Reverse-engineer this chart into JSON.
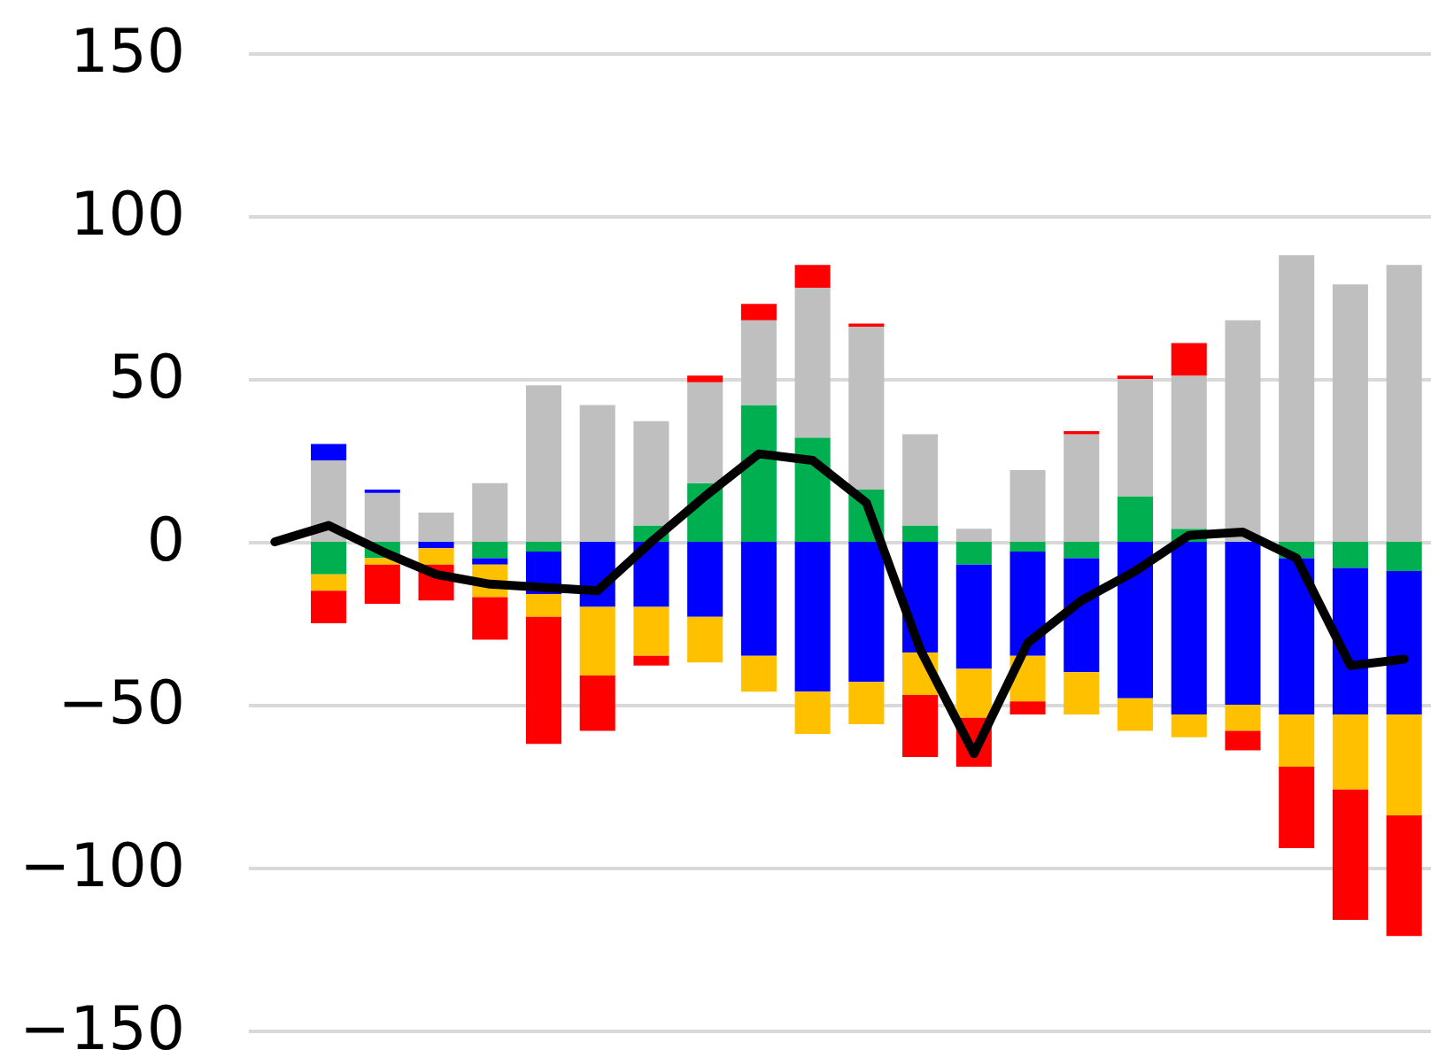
{
  "chart_data": {
    "type": "bar",
    "stacked": true,
    "categories": [
      null,
      null,
      null,
      null,
      null,
      null,
      null,
      null,
      null,
      null,
      null,
      null,
      null,
      null,
      null,
      null,
      null,
      null,
      null,
      null,
      null,
      null
    ],
    "series": [
      {
        "color": "#00b050",
        "values": [
          null,
          -10,
          -5,
          null,
          -5,
          -3,
          null,
          5,
          18,
          42,
          32,
          16,
          5,
          -7,
          -3,
          -5,
          14,
          4,
          null,
          -5,
          -8,
          -9
        ]
      },
      {
        "color": "#bfbfbf",
        "values": [
          null,
          25,
          15,
          9,
          18,
          48,
          42,
          32,
          31,
          26,
          46,
          50,
          28,
          4,
          22,
          33,
          36,
          47,
          68,
          88,
          79,
          85
        ]
      },
      {
        "color": "#0000ff",
        "values": [
          null,
          5,
          1,
          -2,
          -2,
          -13,
          -20,
          -20,
          -23,
          -35,
          -46,
          -43,
          -34,
          -32,
          -32,
          -35,
          -48,
          -53,
          -50,
          -48,
          -45,
          -44
        ]
      },
      {
        "color": "#ffc000",
        "values": [
          null,
          -5,
          -2,
          -5,
          -10,
          -7,
          -21,
          -15,
          -14,
          -11,
          -13,
          -13,
          -13,
          -15,
          -14,
          -13,
          -10,
          -7,
          -8,
          -16,
          -23,
          -31
        ]
      },
      {
        "color": "#ff0000",
        "values": [
          null,
          -10,
          -12,
          -11,
          -13,
          -39,
          -17,
          -3,
          2,
          5,
          7,
          1,
          -19,
          -15,
          -4,
          1,
          1,
          10,
          -6,
          -25,
          -40,
          -37
        ]
      },
      {
        "type": "line",
        "color": "#000000",
        "values": [
          0,
          5,
          -3,
          -10,
          -13,
          -14,
          -15,
          0,
          14,
          27,
          25,
          12,
          -33,
          -65,
          -31,
          -18,
          -9,
          2,
          3,
          -5,
          -38,
          -36
        ]
      }
    ],
    "ylim": [
      -150,
      150
    ],
    "yticks": [
      -150,
      -100,
      -50,
      0,
      50,
      100,
      150
    ],
    "grid": "y",
    "tick_labels": "y",
    "legend": false,
    "line_style": "solid",
    "marker": "none"
  }
}
